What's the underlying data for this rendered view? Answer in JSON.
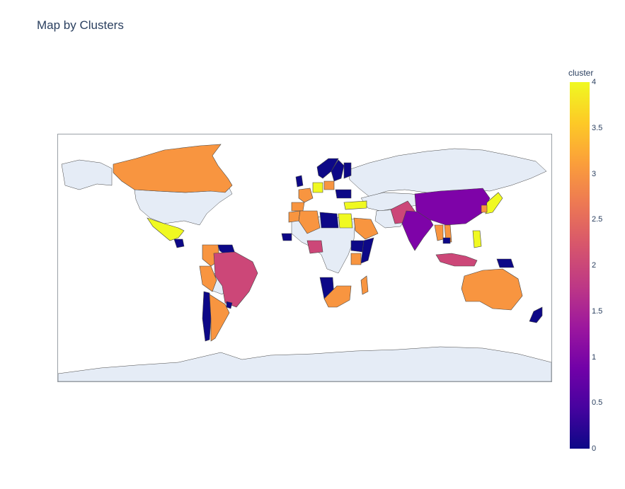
{
  "title": "Map by Clusters",
  "colorbar": {
    "title": "cluster",
    "ticks": [
      "4",
      "3.5",
      "3",
      "2.5",
      "2",
      "1.5",
      "1",
      "0.5",
      "0"
    ]
  },
  "colors": {
    "land_no_data": "#e5ecf6",
    "cluster_0": "#0d0887",
    "cluster_1": "#7e03a8",
    "cluster_2": "#cc4778",
    "cluster_3": "#f89540",
    "cluster_4": "#f0f921"
  },
  "chart_data": {
    "type": "choropleth",
    "title": "Map by Clusters",
    "color_variable": "cluster",
    "color_range": [
      0,
      4
    ],
    "colorscale": "Plasma",
    "regions": [
      {
        "name": "Canada",
        "cluster": 3
      },
      {
        "name": "Mexico",
        "cluster": 4
      },
      {
        "name": "Guatemala",
        "cluster": 0
      },
      {
        "name": "Venezuela",
        "cluster": 0
      },
      {
        "name": "Colombia",
        "cluster": 3
      },
      {
        "name": "Peru",
        "cluster": 3
      },
      {
        "name": "Brazil",
        "cluster": 2
      },
      {
        "name": "Chile",
        "cluster": 0
      },
      {
        "name": "Argentina",
        "cluster": 3
      },
      {
        "name": "Uruguay",
        "cluster": 0
      },
      {
        "name": "Norway",
        "cluster": 0
      },
      {
        "name": "Sweden",
        "cluster": 0
      },
      {
        "name": "Finland",
        "cluster": 0
      },
      {
        "name": "United Kingdom",
        "cluster": 0
      },
      {
        "name": "France",
        "cluster": 3
      },
      {
        "name": "Spain",
        "cluster": 3
      },
      {
        "name": "Germany",
        "cluster": 4
      },
      {
        "name": "Poland",
        "cluster": 3
      },
      {
        "name": "Ukraine",
        "cluster": 0
      },
      {
        "name": "Turkey",
        "cluster": 4
      },
      {
        "name": "Morocco",
        "cluster": 3
      },
      {
        "name": "Algeria",
        "cluster": 3
      },
      {
        "name": "Libya",
        "cluster": 0
      },
      {
        "name": "Egypt",
        "cluster": 4
      },
      {
        "name": "Saudi Arabia",
        "cluster": 3
      },
      {
        "name": "Senegal",
        "cluster": 0
      },
      {
        "name": "Nigeria",
        "cluster": 2
      },
      {
        "name": "Ethiopia",
        "cluster": 0
      },
      {
        "name": "Somalia",
        "cluster": 0
      },
      {
        "name": "Kenya",
        "cluster": 3
      },
      {
        "name": "Namibia",
        "cluster": 0
      },
      {
        "name": "South Africa",
        "cluster": 3
      },
      {
        "name": "Madagascar",
        "cluster": 3
      },
      {
        "name": "Pakistan",
        "cluster": 2
      },
      {
        "name": "India",
        "cluster": 1
      },
      {
        "name": "China",
        "cluster": 1
      },
      {
        "name": "Thailand",
        "cluster": 3
      },
      {
        "name": "Vietnam",
        "cluster": 3
      },
      {
        "name": "Cambodia",
        "cluster": 0
      },
      {
        "name": "Philippines",
        "cluster": 4
      },
      {
        "name": "Japan",
        "cluster": 4
      },
      {
        "name": "South Korea",
        "cluster": 3
      },
      {
        "name": "Indonesia",
        "cluster": 2
      },
      {
        "name": "Papua New Guinea",
        "cluster": 0
      },
      {
        "name": "Australia",
        "cluster": 3
      },
      {
        "name": "New Zealand",
        "cluster": 0
      }
    ]
  }
}
